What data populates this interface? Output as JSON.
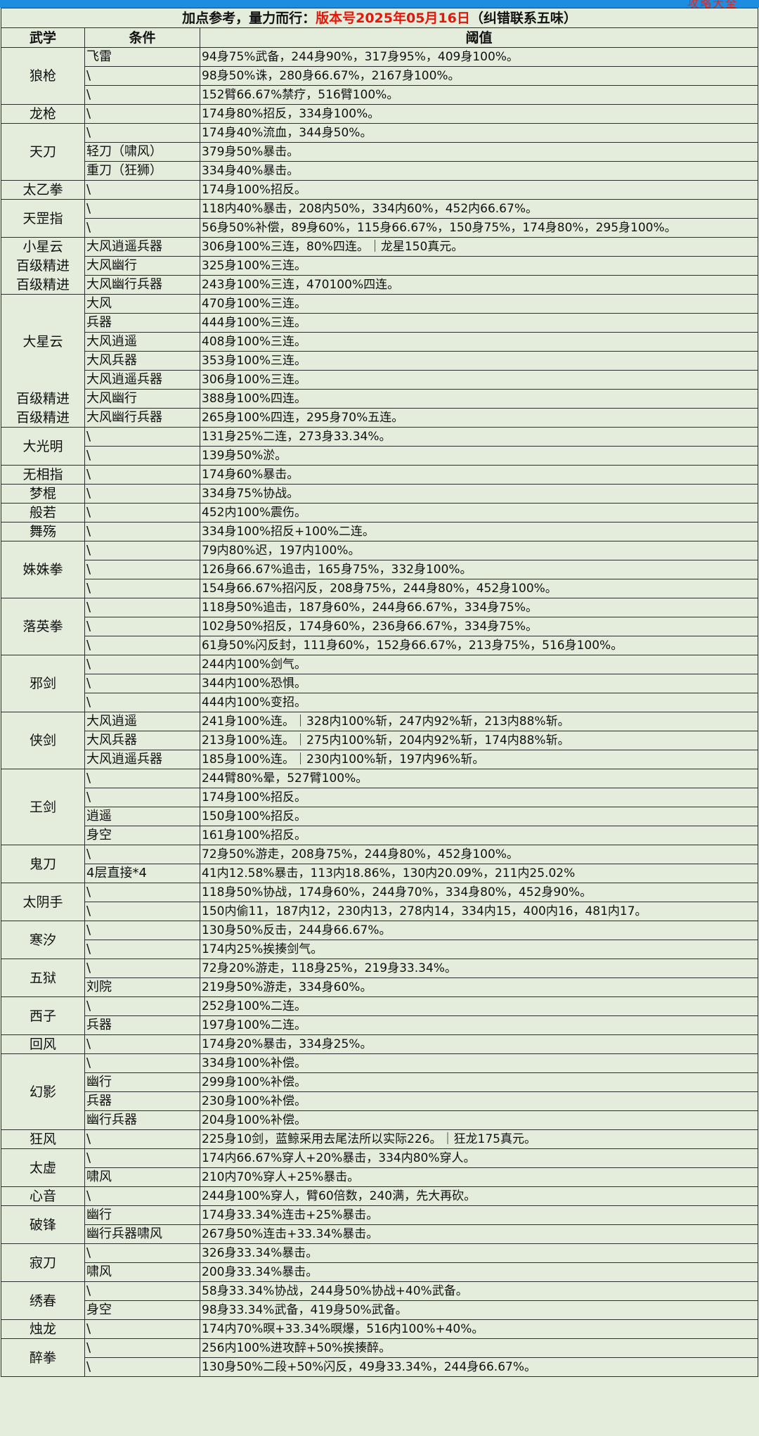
{
  "top_bar_text": "攻略大全",
  "title": {
    "prefix": "加点参考，量力而行：",
    "version": "版本号2025年05月16日",
    "suffix": "（纠错联系五味）"
  },
  "columns": [
    "武学",
    "条件",
    "阈值"
  ],
  "groups": [
    {
      "name": "狼枪",
      "rows": [
        {
          "cond": "飞雷",
          "value": "94身75%武备，244身90%，317身95%，409身100%。"
        },
        {
          "cond": "\\",
          "value": "98身50%诛，280身66.67%，2167身100%。"
        },
        {
          "cond": "\\",
          "value": "152臂66.67%禁疗，516臂100%。"
        }
      ]
    },
    {
      "name": "龙枪",
      "rows": [
        {
          "cond": "\\",
          "value": "174身80%招反，334身100%。"
        }
      ]
    },
    {
      "name": "天刀",
      "rows": [
        {
          "cond": "\\",
          "value": "174身40%流血，344身50%。"
        },
        {
          "cond": "轻刀（啸风）",
          "value": "379身50%暴击。"
        },
        {
          "cond": "重刀（狂狮）",
          "value": "334身40%暴击。"
        }
      ]
    },
    {
      "name": "太乙拳",
      "rows": [
        {
          "cond": "\\",
          "value": "174身100%招反。"
        }
      ]
    },
    {
      "name": "天罡指",
      "rows": [
        {
          "cond": "\\",
          "value": "118内40%暴击，208内50%，334内60%，452内66.67%。"
        },
        {
          "cond": "\\",
          "value": "56身50%补偿，89身60%，115身66.67%，150身75%，174身80%，295身100%。"
        }
      ]
    },
    {
      "name": "小星云",
      "rows": [
        {
          "cond": "大风逍遥兵器",
          "value": "306身100%三连，80%四连。｜龙星150真元。"
        },
        {
          "label": "百级精进",
          "cond": "大风幽行",
          "value": "325身100%三连。"
        },
        {
          "label": "百级精进",
          "cond": "大风幽行兵器",
          "value": "243身100%三连，470100%四连。"
        }
      ]
    },
    {
      "name": "大星云",
      "rows": [
        {
          "cond": "大风",
          "value": "470身100%三连。"
        },
        {
          "cond": "兵器",
          "value": "444身100%三连。"
        },
        {
          "cond": "大风逍遥",
          "value": "408身100%三连。"
        },
        {
          "cond": "大风兵器",
          "value": "353身100%三连。"
        },
        {
          "cond": "大风逍遥兵器",
          "value": "306身100%三连。"
        },
        {
          "label": "百级精进",
          "cond": "大风幽行",
          "value": "388身100%四连。"
        },
        {
          "label": "百级精进",
          "cond": "大风幽行兵器",
          "value": "265身100%四连，295身70%五连。"
        }
      ]
    },
    {
      "name": "大光明",
      "rows": [
        {
          "cond": "\\",
          "value": "131身25%二连，273身33.34%。"
        },
        {
          "cond": "\\",
          "value": "139身50%淤。"
        }
      ]
    },
    {
      "name": "无相指",
      "rows": [
        {
          "cond": "\\",
          "value": "174身60%暴击。"
        }
      ]
    },
    {
      "name": "梦棍",
      "rows": [
        {
          "cond": "\\",
          "value": "334身75%协战。"
        }
      ]
    },
    {
      "name": "般若",
      "rows": [
        {
          "cond": "\\",
          "value": "452内100%震伤。"
        }
      ]
    },
    {
      "name": "舞殇",
      "rows": [
        {
          "cond": "\\",
          "value": "334身100%招反+100%二连。"
        }
      ]
    },
    {
      "name": "姝姝拳",
      "rows": [
        {
          "cond": "\\",
          "value": "79内80%迟，197内100%。"
        },
        {
          "cond": "\\",
          "value": "126身66.67%追击，165身75%，332身100%。"
        },
        {
          "cond": "\\",
          "value": "154身66.67%招闪反，208身75%，244身80%，452身100%。"
        }
      ]
    },
    {
      "name": "落英拳",
      "rows": [
        {
          "cond": "\\",
          "value": "118身50%追击，187身60%，244身66.67%，334身75%。"
        },
        {
          "cond": "\\",
          "value": "102身50%招反，174身60%，236身66.67%，334身75%。"
        },
        {
          "cond": "\\",
          "value": "61身50%闪反封，111身60%，152身66.67%，213身75%，516身100%。"
        }
      ]
    },
    {
      "name": "邪剑",
      "rows": [
        {
          "cond": "\\",
          "value": "244内100%剑气。"
        },
        {
          "cond": "\\",
          "value": "344内100%恐惧。"
        },
        {
          "cond": "\\",
          "value": "444内100%变招。"
        }
      ]
    },
    {
      "name": "侠剑",
      "rows": [
        {
          "cond": "大风逍遥",
          "value": "241身100%连。｜328内100%斩，247内92%斩，213内88%斩。"
        },
        {
          "cond": "大风兵器",
          "value": "213身100%连。｜275内100%斩，204内92%斩，174内88%斩。"
        },
        {
          "cond": "大风逍遥兵器",
          "value": "185身100%连。｜230内100%斩，197内96%斩。"
        }
      ]
    },
    {
      "name": "王剑",
      "rows": [
        {
          "cond": "\\",
          "value": "244臂80%晕，527臂100%。"
        },
        {
          "cond": "\\",
          "value": "174身100%招反。"
        },
        {
          "cond": "逍遥",
          "value": "150身100%招反。"
        },
        {
          "cond": "身空",
          "value": "161身100%招反。"
        }
      ]
    },
    {
      "name": "鬼刀",
      "rows": [
        {
          "cond": "\\",
          "value": "72身50%游走，208身75%，244身80%，452身100%。"
        },
        {
          "cond": "4层直接*4",
          "value": "41内12.58%暴击，113内18.86%，130内20.09%，211内25.02%"
        }
      ]
    },
    {
      "name": "太阴手",
      "rows": [
        {
          "cond": "\\",
          "value": "118身50%协战，174身60%，244身70%，334身80%，452身90%。"
        },
        {
          "cond": "\\",
          "value": "150内偷11，187内12，230内13，278内14，334内15，400内16，481内17。"
        }
      ]
    },
    {
      "name": "寒汐",
      "rows": [
        {
          "cond": "\\",
          "value": "130身50%反击，244身66.67%。"
        },
        {
          "cond": "\\",
          "value": "174内25%挨揍剑气。"
        }
      ]
    },
    {
      "name": "五狱",
      "rows": [
        {
          "cond": "\\",
          "value": "72身20%游走，118身25%，219身33.34%。"
        },
        {
          "cond": "刘院",
          "value": "219身50%游走，334身60%。"
        }
      ]
    },
    {
      "name": "西子",
      "rows": [
        {
          "cond": "\\",
          "value": "252身100%二连。"
        },
        {
          "cond": "兵器",
          "value": "197身100%二连。"
        }
      ]
    },
    {
      "name": "回风",
      "rows": [
        {
          "cond": "\\",
          "value": "174身20%暴击，334身25%。"
        }
      ]
    },
    {
      "name": "幻影",
      "rows": [
        {
          "cond": "\\",
          "value": "334身100%补偿。"
        },
        {
          "cond": "幽行",
          "value": "299身100%补偿。"
        },
        {
          "cond": "兵器",
          "value": "230身100%补偿。"
        },
        {
          "cond": "幽行兵器",
          "value": "204身100%补偿。"
        }
      ]
    },
    {
      "name": "狂风",
      "rows": [
        {
          "cond": "\\",
          "value": "225身10剑，蓝鲸采用去尾法所以实际226。｜狂龙175真元。"
        }
      ]
    },
    {
      "name": "太虚",
      "rows": [
        {
          "cond": "\\",
          "value": "174内66.67%穿人+20%暴击，334内80%穿人。"
        },
        {
          "cond": "啸风",
          "value": "210内70%穿人+25%暴击。"
        }
      ]
    },
    {
      "name": "心音",
      "rows": [
        {
          "cond": "\\",
          "value": "244身100%穿人，臂60倍数，240满，先大再砍。"
        }
      ]
    },
    {
      "name": "破锋",
      "rows": [
        {
          "cond": "幽行",
          "value": "174身33.34%连击+25%暴击。"
        },
        {
          "cond": "幽行兵器啸风",
          "value": "267身50%连击+33.34%暴击。"
        }
      ]
    },
    {
      "name": "寂刀",
      "rows": [
        {
          "cond": "\\",
          "value": "326身33.34%暴击。"
        },
        {
          "cond": "啸风",
          "value": "200身33.34%暴击。"
        }
      ]
    },
    {
      "name": "绣春",
      "rows": [
        {
          "cond": "\\",
          "value": "58身33.34%协战，244身50%协战+40%武备。"
        },
        {
          "cond": "身空",
          "value": "98身33.34%武备，419身50%武备。"
        }
      ]
    },
    {
      "name": "烛龙",
      "rows": [
        {
          "cond": "\\",
          "value": "174内70%暝+33.34%暝爆，516内100%+40%。"
        }
      ]
    },
    {
      "name": "醉拳",
      "rows": [
        {
          "cond": "\\",
          "value": "256内100%进攻醉+50%挨揍醉。"
        },
        {
          "cond": "\\",
          "value": "130身50%二段+50%闪反，49身33.34%，244身66.67%。"
        }
      ]
    }
  ]
}
